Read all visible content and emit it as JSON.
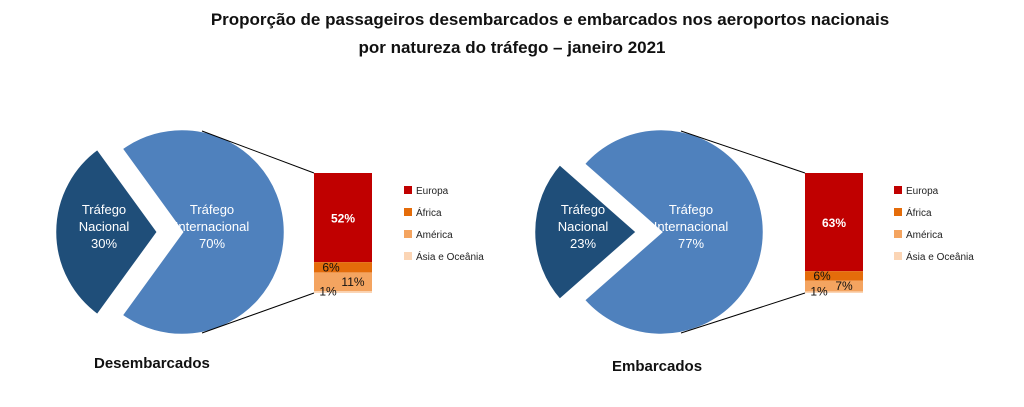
{
  "title": {
    "line1": "Proporção de passageiros desembarcados e embarcados nos aeroportos nacionais",
    "line2": "por natureza do tráfego – janeiro 2021"
  },
  "colors": {
    "nacional": "#1f4e79",
    "internacional": "#4f81bd",
    "europa": "#c00000",
    "africa": "#e46c0a",
    "america": "#f4a460",
    "asia": "#fbd5b5"
  },
  "chart_data": [
    {
      "type": "pie",
      "caption": "Desembarcados",
      "pie": [
        {
          "name": "Tráfego Nacional",
          "value": 30,
          "label": "30%"
        },
        {
          "name": "Tráfego Internacional",
          "value": 70,
          "label": "70%"
        }
      ],
      "breakdown_of": "Tráfego Internacional",
      "bar": [
        {
          "name": "Europa",
          "value": 52,
          "label": "52%"
        },
        {
          "name": "África",
          "value": 6,
          "label": "6%"
        },
        {
          "name": "América",
          "value": 11,
          "label": "11%"
        },
        {
          "name": "Ásia e Oceânia",
          "value": 1,
          "label": "1%"
        }
      ]
    },
    {
      "type": "pie",
      "caption": "Embarcados",
      "pie": [
        {
          "name": "Tráfego Nacional",
          "value": 23,
          "label": "23%"
        },
        {
          "name": "Tráfego Internacional",
          "value": 77,
          "label": "77%"
        }
      ],
      "breakdown_of": "Tráfego Internacional",
      "bar": [
        {
          "name": "Europa",
          "value": 63,
          "label": "63%"
        },
        {
          "name": "África",
          "value": 6,
          "label": "6%"
        },
        {
          "name": "América",
          "value": 7,
          "label": "7%"
        },
        {
          "name": "Ásia e Oceânia",
          "value": 1,
          "label": "1%"
        }
      ]
    }
  ]
}
